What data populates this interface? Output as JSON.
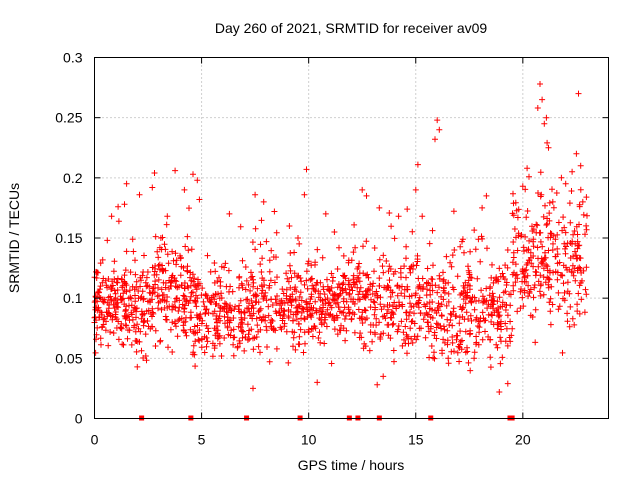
{
  "chart_data": {
    "type": "scatter",
    "title": "Day 260 of 2021, SRMTID for receiver av09",
    "xlabel": "GPS time / hours",
    "ylabel": "SRMTID / TECUs",
    "xlim": [
      0,
      24
    ],
    "ylim": [
      0,
      0.3
    ],
    "x_ticks": [
      0,
      5,
      10,
      15,
      20
    ],
    "x_tick_labels": [
      "0",
      "5",
      "10",
      "15",
      "20"
    ],
    "y_ticks": [
      0,
      0.05,
      0.1,
      0.15,
      0.2,
      0.25,
      0.3
    ],
    "y_tick_labels": [
      "0",
      "0.05",
      "0.1",
      "0.15",
      "0.2",
      "0.25",
      "0.3"
    ],
    "grid": true,
    "marker": "+",
    "color": "#ff0000",
    "series": [
      {
        "name": "SRMTID",
        "segments": [
          {
            "x0": 0.0,
            "x1": 1.3,
            "base": 0.095,
            "spread": 0.03,
            "n": 120
          },
          {
            "x0": 1.3,
            "x1": 2.6,
            "base": 0.09,
            "spread": 0.035,
            "n": 110
          },
          {
            "x0": 2.6,
            "x1": 4.6,
            "base": 0.105,
            "spread": 0.04,
            "n": 170
          },
          {
            "x0": 4.6,
            "x1": 7.0,
            "base": 0.085,
            "spread": 0.03,
            "n": 190
          },
          {
            "x0": 7.0,
            "x1": 9.6,
            "base": 0.095,
            "spread": 0.035,
            "n": 200
          },
          {
            "x0": 9.6,
            "x1": 12.0,
            "base": 0.095,
            "spread": 0.03,
            "n": 190
          },
          {
            "x0": 12.0,
            "x1": 15.6,
            "base": 0.095,
            "spread": 0.035,
            "n": 260
          },
          {
            "x0": 15.6,
            "x1": 19.5,
            "base": 0.09,
            "spread": 0.04,
            "n": 290
          },
          {
            "x0": 19.5,
            "x1": 23.0,
            "base": 0.13,
            "spread": 0.05,
            "n": 260
          }
        ],
        "highlights": [
          {
            "x": 0.6,
            "y": 0.148
          },
          {
            "x": 0.8,
            "y": 0.168
          },
          {
            "x": 1.1,
            "y": 0.176
          },
          {
            "x": 1.4,
            "y": 0.178
          },
          {
            "x": 1.5,
            "y": 0.195
          },
          {
            "x": 2.1,
            "y": 0.186
          },
          {
            "x": 2.7,
            "y": 0.192
          },
          {
            "x": 2.8,
            "y": 0.204
          },
          {
            "x": 3.1,
            "y": 0.15
          },
          {
            "x": 3.4,
            "y": 0.168
          },
          {
            "x": 4.2,
            "y": 0.19
          },
          {
            "x": 4.6,
            "y": 0.203
          },
          {
            "x": 4.8,
            "y": 0.198
          },
          {
            "x": 4.9,
            "y": 0.182
          },
          {
            "x": 6.3,
            "y": 0.17
          },
          {
            "x": 7.5,
            "y": 0.186
          },
          {
            "x": 7.9,
            "y": 0.18
          },
          {
            "x": 8.4,
            "y": 0.172
          },
          {
            "x": 9.1,
            "y": 0.16
          },
          {
            "x": 9.5,
            "y": 0.15
          },
          {
            "x": 9.8,
            "y": 0.186
          },
          {
            "x": 9.9,
            "y": 0.207
          },
          {
            "x": 10.8,
            "y": 0.17
          },
          {
            "x": 11.2,
            "y": 0.155
          },
          {
            "x": 12.5,
            "y": 0.19
          },
          {
            "x": 12.7,
            "y": 0.185
          },
          {
            "x": 13.3,
            "y": 0.175
          },
          {
            "x": 14.2,
            "y": 0.168
          },
          {
            "x": 14.6,
            "y": 0.174
          },
          {
            "x": 15.0,
            "y": 0.19
          },
          {
            "x": 15.1,
            "y": 0.211
          },
          {
            "x": 15.3,
            "y": 0.168
          },
          {
            "x": 15.9,
            "y": 0.232
          },
          {
            "x": 16.0,
            "y": 0.248
          },
          {
            "x": 16.1,
            "y": 0.24
          },
          {
            "x": 16.8,
            "y": 0.14
          },
          {
            "x": 18.1,
            "y": 0.175
          },
          {
            "x": 18.3,
            "y": 0.185
          },
          {
            "x": 19.3,
            "y": 0.14
          },
          {
            "x": 19.3,
            "y": 0.029
          },
          {
            "x": 18.9,
            "y": 0.022
          },
          {
            "x": 20.0,
            "y": 0.193
          },
          {
            "x": 20.2,
            "y": 0.208
          },
          {
            "x": 20.7,
            "y": 0.258
          },
          {
            "x": 20.8,
            "y": 0.278
          },
          {
            "x": 20.9,
            "y": 0.265
          },
          {
            "x": 21.0,
            "y": 0.245
          },
          {
            "x": 21.1,
            "y": 0.25
          },
          {
            "x": 21.2,
            "y": 0.225
          },
          {
            "x": 21.4,
            "y": 0.18
          },
          {
            "x": 21.8,
            "y": 0.2
          },
          {
            "x": 22.0,
            "y": 0.195
          },
          {
            "x": 22.3,
            "y": 0.205
          },
          {
            "x": 22.5,
            "y": 0.22
          },
          {
            "x": 22.6,
            "y": 0.27
          },
          {
            "x": 22.7,
            "y": 0.21
          },
          {
            "x": 22.8,
            "y": 0.18
          },
          {
            "x": 7.4,
            "y": 0.025
          },
          {
            "x": 13.2,
            "y": 0.028
          },
          {
            "x": 10.4,
            "y": 0.03
          }
        ]
      }
    ],
    "zero_flags_x": [
      2.2,
      4.5,
      7.1,
      9.6,
      11.9,
      12.3,
      13.3,
      15.7,
      19.4,
      19.5
    ]
  }
}
